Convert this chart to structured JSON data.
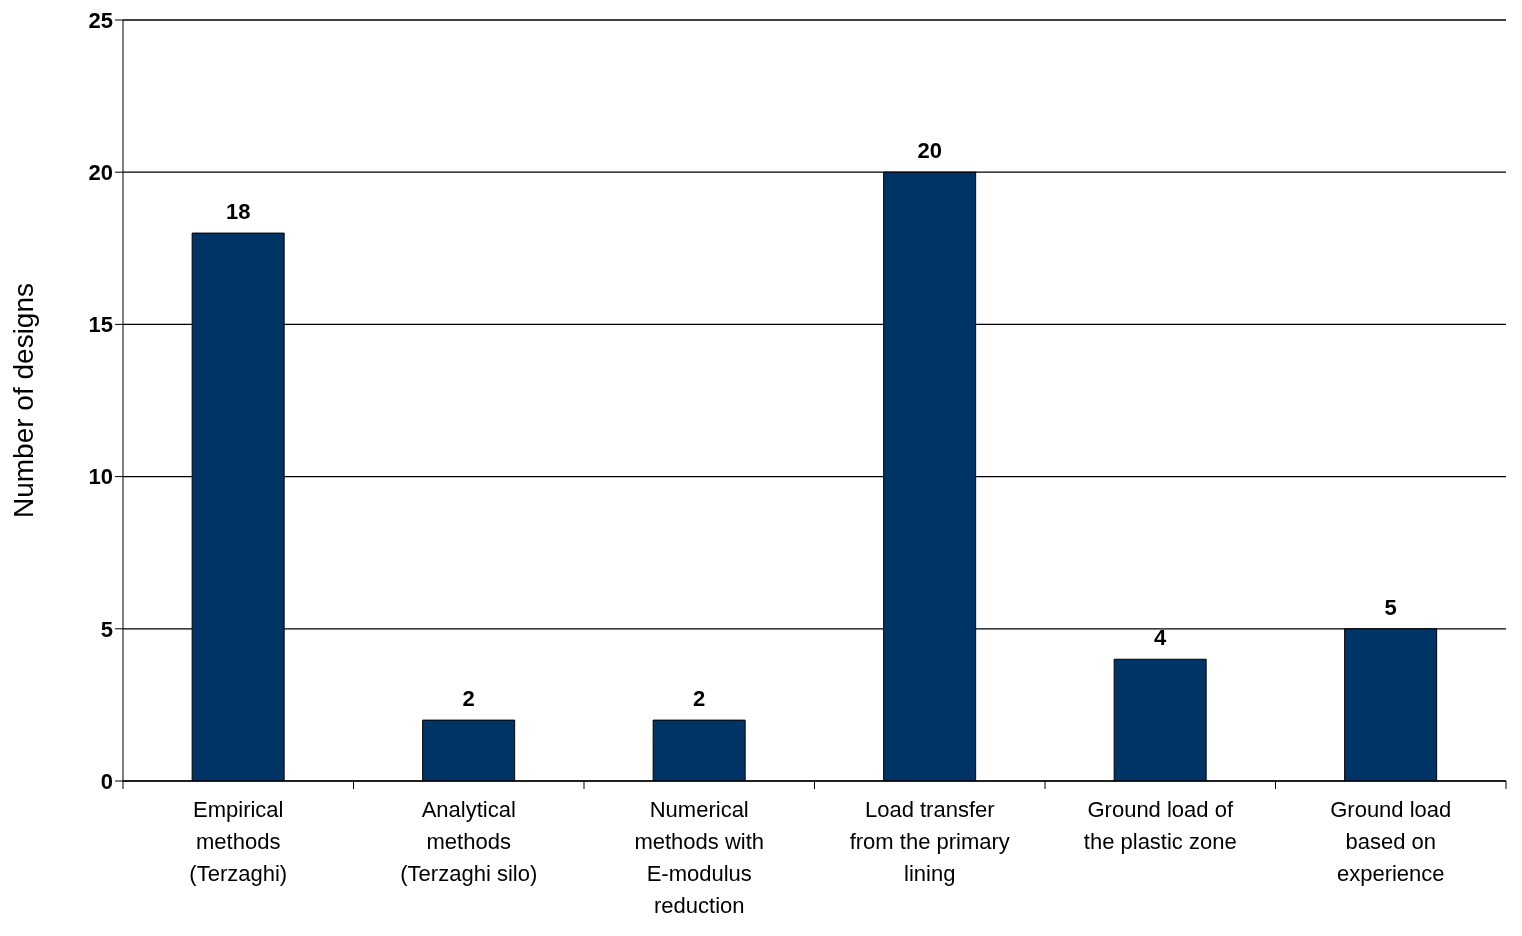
{
  "chart_data": {
    "type": "bar",
    "ylabel": "Number of designs",
    "categories": [
      "Empirical methods (Terzaghi)",
      "Analytical methods (Terzaghi silo)",
      "Numerical methods with E-modulus reduction",
      "Load transfer from the primary lining",
      "Ground load of the plastic zone",
      "Ground load based on experience"
    ],
    "values": [
      18,
      2,
      2,
      20,
      4,
      5
    ],
    "color": "#003366",
    "ylim": [
      0,
      25
    ],
    "yticks": [
      0,
      5,
      10,
      15,
      20,
      25
    ],
    "grid": "y",
    "data_labels": true
  }
}
